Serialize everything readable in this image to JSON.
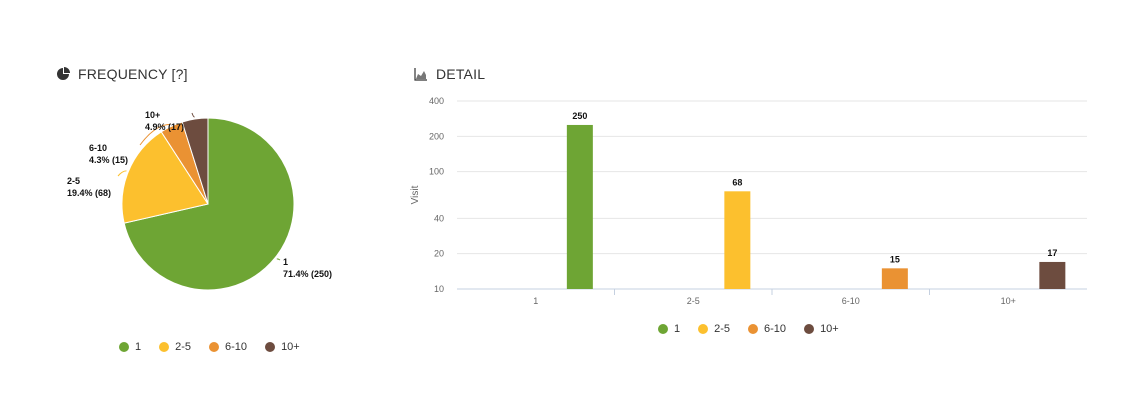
{
  "frequency": {
    "title": "FREQUENCY [?]",
    "icon": "pie-chart-icon"
  },
  "detail": {
    "title": "DETAIL",
    "icon": "area-chart-icon"
  },
  "colors": {
    "1": "#6ea534",
    "2-5": "#fcc02e",
    "6-10": "#ea9233",
    "10+": "#6d4c3f"
  },
  "legend": [
    {
      "label": "1",
      "color": "#6ea534"
    },
    {
      "label": "2-5",
      "color": "#fcc02e"
    },
    {
      "label": "6-10",
      "color": "#ea9233"
    },
    {
      "label": "10+",
      "color": "#6d4c3f"
    }
  ],
  "chart_data": [
    {
      "type": "pie",
      "title": "FREQUENCY [?]",
      "slices": [
        {
          "label": "1",
          "percent": 71.4,
          "value": 250,
          "data_label": "71.4% (250)"
        },
        {
          "label": "2-5",
          "percent": 19.4,
          "value": 68,
          "data_label": "19.4% (68)"
        },
        {
          "label": "6-10",
          "percent": 4.3,
          "value": 15,
          "data_label": "4.3% (15)"
        },
        {
          "label": "10+",
          "percent": 4.9,
          "value": 17,
          "data_label": "4.9% (17)"
        }
      ]
    },
    {
      "type": "bar",
      "title": "DETAIL",
      "categories": [
        "1",
        "2-5",
        "6-10",
        "10+"
      ],
      "values": [
        250,
        68,
        15,
        17
      ],
      "ylabel": "Visit",
      "yscale": "log",
      "yticks": [
        10,
        20,
        40,
        100,
        200,
        400
      ],
      "ylim": [
        10,
        400
      ],
      "grid": true
    }
  ]
}
